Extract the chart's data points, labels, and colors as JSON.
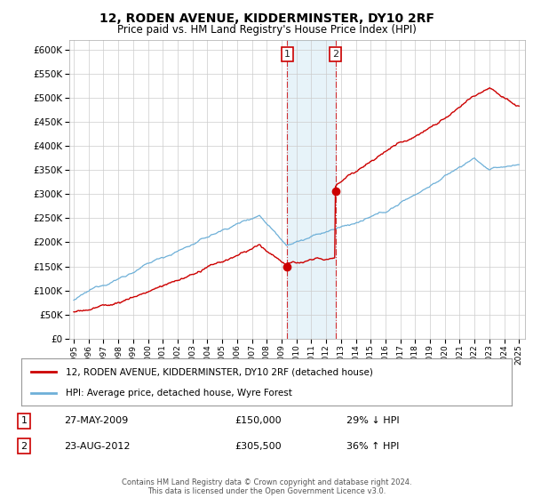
{
  "title": "12, RODEN AVENUE, KIDDERMINSTER, DY10 2RF",
  "subtitle": "Price paid vs. HM Land Registry's House Price Index (HPI)",
  "ylim": [
    0,
    620000
  ],
  "yticks": [
    0,
    50000,
    100000,
    150000,
    200000,
    250000,
    300000,
    350000,
    400000,
    450000,
    500000,
    550000,
    600000
  ],
  "hpi_color": "#6eb0d8",
  "price_color": "#cc0000",
  "marker_color": "#cc0000",
  "shade_color": "#d0e8f5",
  "sale1_year": 2009.38,
  "sale1_price": 150000,
  "sale1_label": "1",
  "sale1_date": "27-MAY-2009",
  "sale1_price_str": "£150,000",
  "sale1_pct": "29% ↓ HPI",
  "sale2_year": 2012.63,
  "sale2_price": 305500,
  "sale2_label": "2",
  "sale2_date": "23-AUG-2012",
  "sale2_price_str": "£305,500",
  "sale2_pct": "36% ↑ HPI",
  "legend1": "12, RODEN AVENUE, KIDDERMINSTER, DY10 2RF (detached house)",
  "legend2": "HPI: Average price, detached house, Wyre Forest",
  "footnote": "Contains HM Land Registry data © Crown copyright and database right 2024.\nThis data is licensed under the Open Government Licence v3.0.",
  "background_color": "#ffffff",
  "grid_color": "#cccccc"
}
